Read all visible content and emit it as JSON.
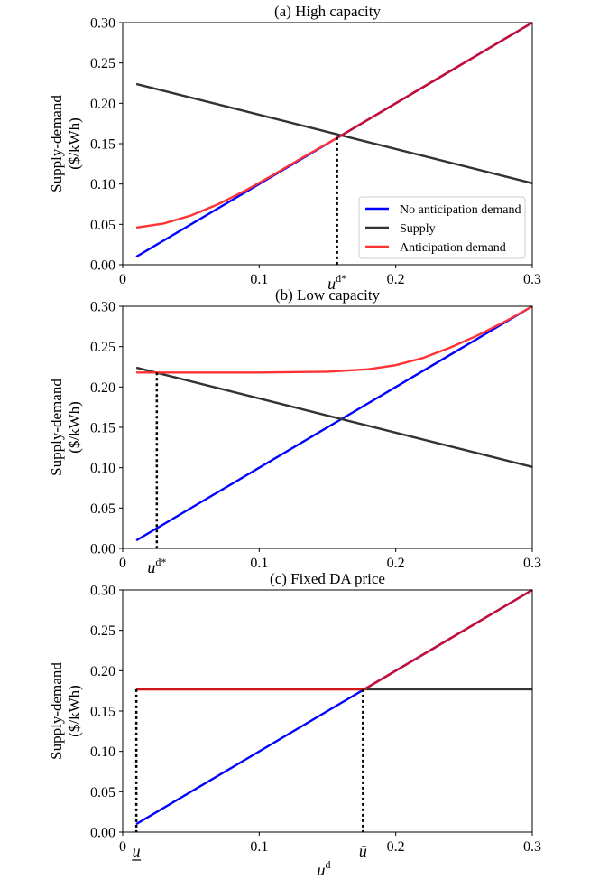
{
  "colors": {
    "no_anticipation": "#0000ff",
    "supply": "#333333",
    "anticipation": "#ff3333",
    "overlap": "#c0103a"
  },
  "chart_data": [
    {
      "type": "line",
      "title": "(a) High capacity",
      "xlabel": "",
      "ylabel": [
        "Supply-demand",
        "($/kWh)"
      ],
      "xlim": [
        0,
        0.3
      ],
      "ylim": [
        0,
        0.3
      ],
      "xticks": [
        "0",
        "0.1",
        "0.2",
        "0.3"
      ],
      "yticks": [
        "0.00",
        "0.05",
        "0.10",
        "0.15",
        "0.20",
        "0.25",
        "0.30"
      ],
      "legend": {
        "position": "lower-right",
        "entries": [
          "No anticipation demand",
          "Supply",
          "Anticipation demand"
        ]
      },
      "series": [
        {
          "name": "No anticipation demand",
          "x": [
            0.01,
            0.3
          ],
          "y": [
            0.01,
            0.3
          ]
        },
        {
          "name": "Supply",
          "x": [
            0.01,
            0.3
          ],
          "y": [
            0.224,
            0.101
          ]
        },
        {
          "name": "Anticipation demand",
          "x": [
            0.01,
            0.03,
            0.05,
            0.07,
            0.09,
            0.11,
            0.13,
            0.157,
            0.2,
            0.25,
            0.3
          ],
          "y": [
            0.046,
            0.051,
            0.061,
            0.075,
            0.092,
            0.111,
            0.131,
            0.157,
            0.2,
            0.25,
            0.3
          ]
        }
      ],
      "markers": [
        {
          "label": "u",
          "sup": "d*",
          "x": 0.157,
          "y": 0.158
        }
      ]
    },
    {
      "type": "line",
      "title": "(b) Low capacity",
      "xlabel": "",
      "ylabel": [
        "Supply-demand",
        "($/kWh)"
      ],
      "xlim": [
        0,
        0.3
      ],
      "ylim": [
        0,
        0.3
      ],
      "xticks": [
        "0",
        "0.1",
        "0.2",
        "0.3"
      ],
      "yticks": [
        "0.00",
        "0.05",
        "0.10",
        "0.15",
        "0.20",
        "0.25",
        "0.30"
      ],
      "series": [
        {
          "name": "No anticipation demand",
          "x": [
            0.01,
            0.3
          ],
          "y": [
            0.01,
            0.3
          ]
        },
        {
          "name": "Supply",
          "x": [
            0.01,
            0.3
          ],
          "y": [
            0.224,
            0.101
          ]
        },
        {
          "name": "Anticipation demand",
          "x": [
            0.01,
            0.05,
            0.1,
            0.15,
            0.18,
            0.2,
            0.22,
            0.24,
            0.26,
            0.28,
            0.3
          ],
          "y": [
            0.218,
            0.218,
            0.218,
            0.219,
            0.222,
            0.227,
            0.236,
            0.249,
            0.264,
            0.281,
            0.3
          ]
        }
      ],
      "markers": [
        {
          "label": "u",
          "sup": "d*",
          "x": 0.025,
          "y": 0.218
        }
      ]
    },
    {
      "type": "line",
      "title": "(c) Fixed DA price",
      "xlabel": "u",
      "xlabel_sup": "d",
      "ylabel": [
        "Supply-demand",
        "($/kWh)"
      ],
      "xlim": [
        0,
        0.3
      ],
      "ylim": [
        0,
        0.3
      ],
      "xticks": [
        "0",
        "0.1",
        "0.2",
        "0.3"
      ],
      "yticks": [
        "0.00",
        "0.05",
        "0.10",
        "0.15",
        "0.20",
        "0.25",
        "0.30"
      ],
      "series": [
        {
          "name": "No anticipation demand",
          "x": [
            0.01,
            0.3
          ],
          "y": [
            0.01,
            0.3
          ]
        },
        {
          "name": "Supply",
          "x": [
            0.01,
            0.3
          ],
          "y": [
            0.177,
            0.177
          ]
        },
        {
          "name": "Anticipation demand",
          "x": [
            0.01,
            0.177,
            0.3
          ],
          "y": [
            0.177,
            0.177,
            0.3
          ]
        }
      ],
      "markers": [
        {
          "label": "u",
          "mark": "under",
          "x": 0.01,
          "y": 0.177
        },
        {
          "label": "ū",
          "mark": "over",
          "x": 0.176,
          "y": 0.177
        }
      ]
    }
  ]
}
